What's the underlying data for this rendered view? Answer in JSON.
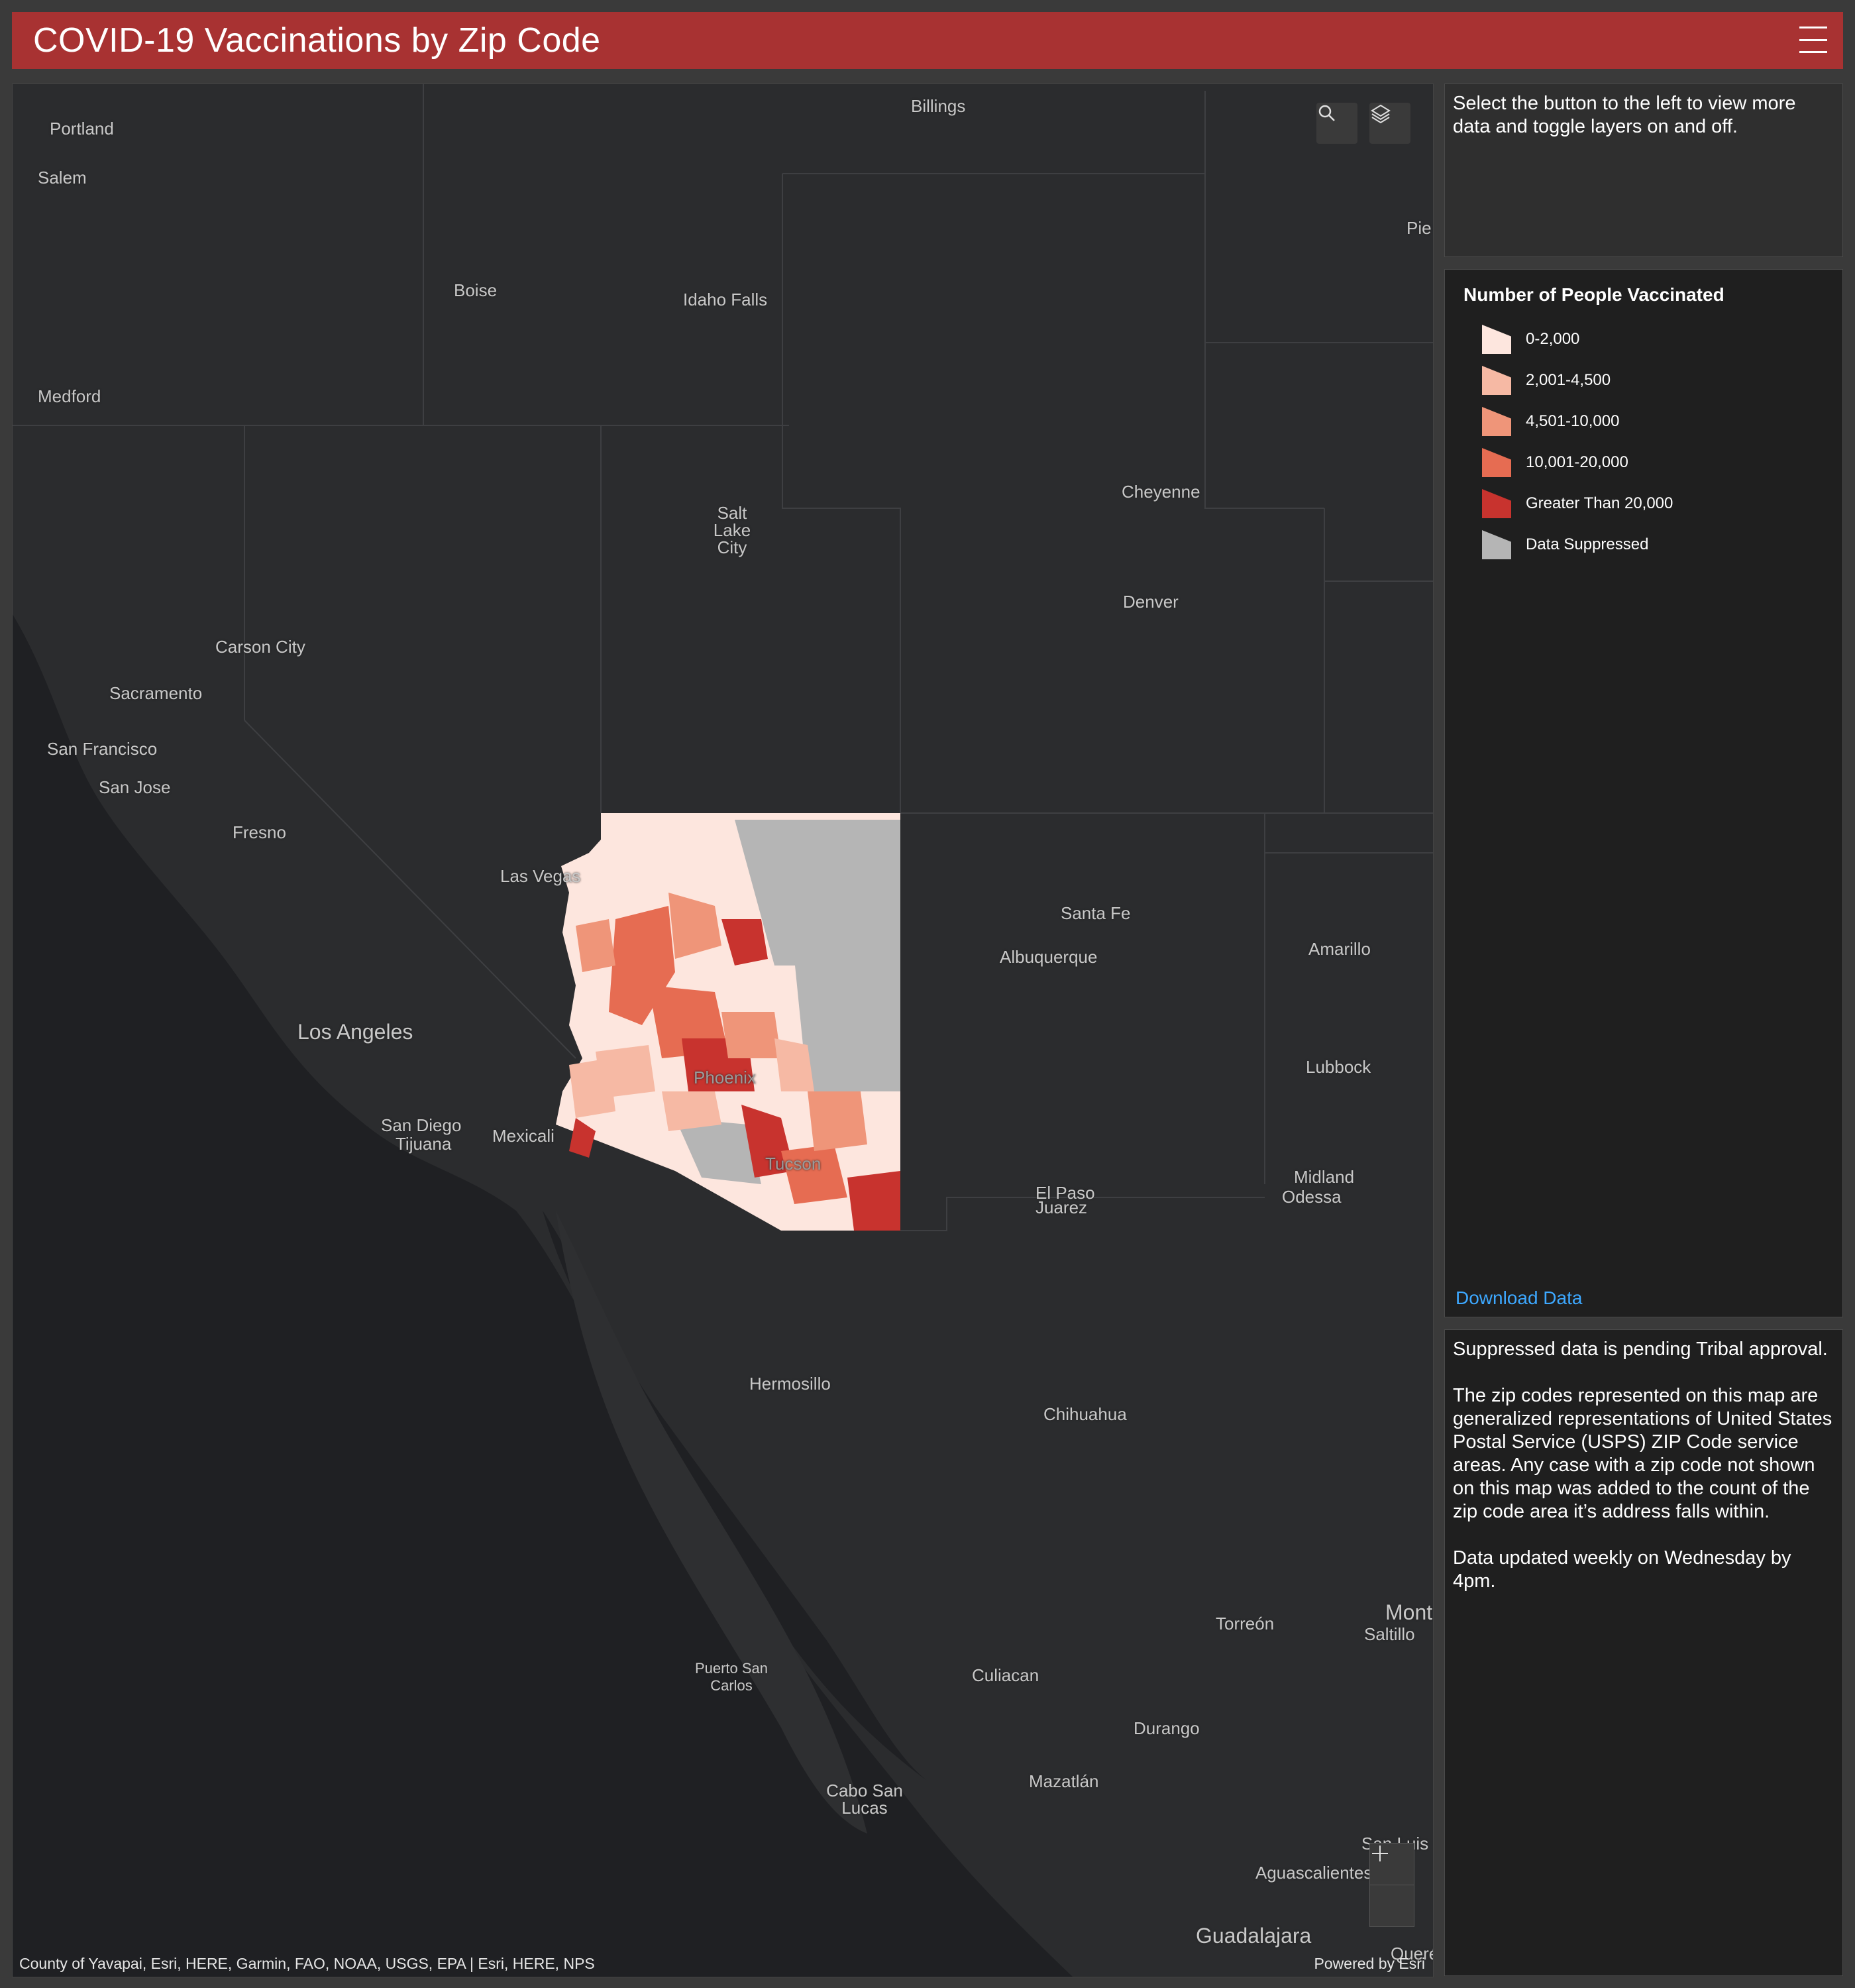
{
  "header": {
    "title": "COVID-19 Vaccinations by Zip Code"
  },
  "map": {
    "places": [
      {
        "name": "Portland"
      },
      {
        "name": "Salem"
      },
      {
        "name": "Billings"
      },
      {
        "name": "Boise"
      },
      {
        "name": "Idaho Falls"
      },
      {
        "name": "Medford"
      },
      {
        "name": "Pie"
      },
      {
        "name": "Salt Lake City"
      },
      {
        "name": "Cheyenne"
      },
      {
        "name": "Denver"
      },
      {
        "name": "Carson City"
      },
      {
        "name": "Sacramento"
      },
      {
        "name": "San Francisco"
      },
      {
        "name": "San Jose"
      },
      {
        "name": "Fresno"
      },
      {
        "name": "Las Vegas"
      },
      {
        "name": "Santa Fe"
      },
      {
        "name": "Albuquerque"
      },
      {
        "name": "Amarillo"
      },
      {
        "name": "Los Angeles"
      },
      {
        "name": "Lubbock"
      },
      {
        "name": "San Diego"
      },
      {
        "name": "Tijuana"
      },
      {
        "name": "Mexicali"
      },
      {
        "name": "Phoenix"
      },
      {
        "name": "Tucson"
      },
      {
        "name": "El Paso"
      },
      {
        "name": "Juarez"
      },
      {
        "name": "Midland"
      },
      {
        "name": "Odessa"
      },
      {
        "name": "Hermosillo"
      },
      {
        "name": "Chihuahua"
      },
      {
        "name": "Torreón"
      },
      {
        "name": "Mont"
      },
      {
        "name": "Saltillo"
      },
      {
        "name": "Puerto San Carlos"
      },
      {
        "name": "Culiacan"
      },
      {
        "name": "Durango"
      },
      {
        "name": "Cabo San Lucas"
      },
      {
        "name": "Mazatlán"
      },
      {
        "name": "San Luis"
      },
      {
        "name": "Aguascalientes"
      },
      {
        "name": "Guadalajara"
      },
      {
        "name": "Queré"
      }
    ],
    "tools": {
      "search_icon": "search-icon",
      "layers_icon": "layers-icon"
    },
    "zoom": {
      "in": "+",
      "out": "—"
    },
    "attribution": "County of Yavapai, Esri, HERE, Garmin, FAO, NOAA, USGS, EPA | Esri, HERE, NPS",
    "powered_by": "Powered by Esri"
  },
  "info_panel": {
    "text": "Select the button to the left to view more data and toggle layers on and off."
  },
  "legend": {
    "title": "Number of People Vaccinated",
    "items": [
      {
        "label": "0-2,000",
        "color": "#fde6de"
      },
      {
        "label": "2,001-4,500",
        "color": "#f6b9a4"
      },
      {
        "label": "4,501-10,000",
        "color": "#ef9579"
      },
      {
        "label": "10,001-20,000",
        "color": "#e66c52"
      },
      {
        "label": "Greater Than 20,000",
        "color": "#c8332e"
      },
      {
        "label": "Data Suppressed",
        "color": "#b5b5b5"
      }
    ],
    "download_label": "Download Data"
  },
  "notes": {
    "line1": "Suppressed data is pending Tribal approval.",
    "line2": "The zip codes represented on this map are generalized representations of United States Postal Service (USPS) ZIP Code service areas. Any case with a zip code not shown on this map was added to the count of the zip code area it’s address falls within.",
    "line3": "Data updated weekly on Wednesday by 4pm."
  }
}
